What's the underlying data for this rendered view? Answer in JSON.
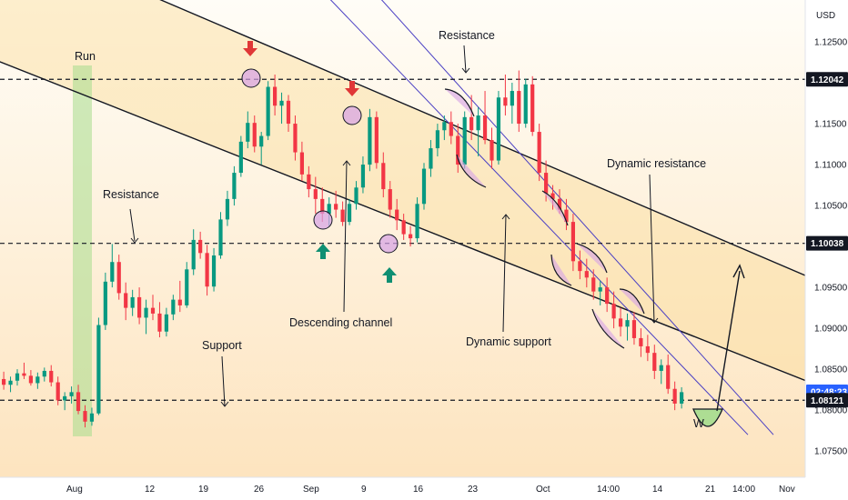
{
  "chart_data": {
    "type": "candlestick",
    "currency": "USD",
    "y_ticks": [
      "1.12500",
      "1.12000",
      "1.11500",
      "1.11000",
      "1.10500",
      "1.10000",
      "1.09500",
      "1.09000",
      "1.08500",
      "1.08000",
      "1.07500"
    ],
    "ylim": [
      1.0718,
      1.129
    ],
    "x_ticks": [
      "Aug",
      "12",
      "19",
      "26",
      "Sep",
      "9",
      "16",
      "23",
      "Oct",
      "14:00",
      "14",
      "21",
      "14:00",
      "Nov"
    ],
    "price_tags": [
      {
        "text": "1.12042",
        "value": 1.12042,
        "style": "level"
      },
      {
        "text": "1.10038",
        "value": 1.10038,
        "style": "level"
      },
      {
        "text": "02:48:23",
        "value": 1.08224,
        "style": "countdown"
      },
      {
        "text": "1.08121",
        "value": 1.08121,
        "style": "level"
      }
    ],
    "horizontal_levels": [
      1.12042,
      1.10038,
      1.08121
    ],
    "candles_ohlc": [
      [
        1.0838,
        1.0847,
        1.0825,
        1.0831
      ],
      [
        1.0831,
        1.0841,
        1.0822,
        1.0836
      ],
      [
        1.0836,
        1.085,
        1.083,
        1.0845
      ],
      [
        1.0845,
        1.0858,
        1.0838,
        1.0842
      ],
      [
        1.0842,
        1.0849,
        1.083,
        1.0833
      ],
      [
        1.0833,
        1.0846,
        1.0826,
        1.0841
      ],
      [
        1.0841,
        1.0852,
        1.0835,
        1.0848
      ],
      [
        1.0848,
        1.0855,
        1.0829,
        1.0834
      ],
      [
        1.0834,
        1.0841,
        1.0806,
        1.0812
      ],
      [
        1.0812,
        1.0822,
        1.08,
        1.0817
      ],
      [
        1.0817,
        1.0829,
        1.0808,
        1.0822
      ],
      [
        1.0822,
        1.0831,
        1.0795,
        1.0799
      ],
      [
        1.0799,
        1.0806,
        1.0779,
        1.0786
      ],
      [
        1.0786,
        1.0803,
        1.0781,
        1.0796
      ],
      [
        1.0796,
        1.0913,
        1.0794,
        1.0904
      ],
      [
        1.0904,
        1.0968,
        1.0898,
        1.0957
      ],
      [
        1.0957,
        1.1003,
        1.095,
        1.0981
      ],
      [
        1.0981,
        1.099,
        1.0935,
        1.0943
      ],
      [
        1.0943,
        1.0956,
        1.091,
        1.0925
      ],
      [
        1.0925,
        1.0947,
        1.0915,
        1.0938
      ],
      [
        1.0938,
        1.095,
        1.0905,
        1.0913
      ],
      [
        1.0913,
        1.0935,
        1.0893,
        1.0925
      ],
      [
        1.0925,
        1.0941,
        1.091,
        1.0918
      ],
      [
        1.0918,
        1.0932,
        1.0889,
        1.0896
      ],
      [
        1.0896,
        1.0925,
        1.089,
        1.0917
      ],
      [
        1.0917,
        1.0941,
        1.091,
        1.0935
      ],
      [
        1.0935,
        1.0958,
        1.092,
        1.0928
      ],
      [
        1.0928,
        1.0981,
        1.0925,
        1.0972
      ],
      [
        1.0972,
        1.1021,
        1.0965,
        1.1008
      ],
      [
        1.1008,
        1.1018,
        1.0985,
        1.0992
      ],
      [
        1.0992,
        1.1002,
        1.094,
        1.0951
      ],
      [
        1.0951,
        1.0998,
        1.0945,
        1.0989
      ],
      [
        1.0989,
        1.1042,
        1.0985,
        1.1033
      ],
      [
        1.1033,
        1.1068,
        1.1025,
        1.1058
      ],
      [
        1.1058,
        1.1098,
        1.105,
        1.109
      ],
      [
        1.109,
        1.1135,
        1.1085,
        1.1128
      ],
      [
        1.1128,
        1.1165,
        1.112,
        1.1151
      ],
      [
        1.1151,
        1.116,
        1.1115,
        1.1122
      ],
      [
        1.1122,
        1.114,
        1.11,
        1.1135
      ],
      [
        1.1135,
        1.1202,
        1.113,
        1.1195
      ],
      [
        1.1195,
        1.121,
        1.116,
        1.1172
      ],
      [
        1.1172,
        1.1188,
        1.115,
        1.1178
      ],
      [
        1.1178,
        1.1185,
        1.114,
        1.115
      ],
      [
        1.115,
        1.116,
        1.1105,
        1.1115
      ],
      [
        1.1115,
        1.1128,
        1.108,
        1.1088
      ],
      [
        1.1088,
        1.1098,
        1.106,
        1.107
      ],
      [
        1.107,
        1.1085,
        1.104,
        1.1058
      ],
      [
        1.1058,
        1.1072,
        1.103,
        1.104
      ],
      [
        1.104,
        1.106,
        1.1025,
        1.1052
      ],
      [
        1.1052,
        1.1068,
        1.1035,
        1.1045
      ],
      [
        1.1045,
        1.1055,
        1.1025,
        1.103
      ],
      [
        1.103,
        1.1058,
        1.1026,
        1.1052
      ],
      [
        1.1052,
        1.108,
        1.1045,
        1.1072
      ],
      [
        1.1072,
        1.111,
        1.1065,
        1.11
      ],
      [
        1.11,
        1.1168,
        1.1092,
        1.1158
      ],
      [
        1.1158,
        1.1165,
        1.1095,
        1.1102
      ],
      [
        1.1102,
        1.1115,
        1.106,
        1.107
      ],
      [
        1.107,
        1.108,
        1.1035,
        1.1045
      ],
      [
        1.1045,
        1.1058,
        1.102,
        1.1032
      ],
      [
        1.1032,
        1.104,
        1.1008,
        1.1015
      ],
      [
        1.1015,
        1.1025,
        1.1,
        1.101
      ],
      [
        1.101,
        1.106,
        1.1005,
        1.1052
      ],
      [
        1.1052,
        1.1102,
        1.1045,
        1.1095
      ],
      [
        1.1095,
        1.113,
        1.1085,
        1.112
      ],
      [
        1.112,
        1.115,
        1.111,
        1.1142
      ],
      [
        1.1142,
        1.116,
        1.113,
        1.1152
      ],
      [
        1.1152,
        1.1165,
        1.1125,
        1.1135
      ],
      [
        1.1135,
        1.115,
        1.109,
        1.11
      ],
      [
        1.11,
        1.1165,
        1.1095,
        1.1158
      ],
      [
        1.1158,
        1.1185,
        1.113,
        1.1142
      ],
      [
        1.1142,
        1.117,
        1.111,
        1.116
      ],
      [
        1.116,
        1.119,
        1.1125,
        1.113
      ],
      [
        1.113,
        1.1145,
        1.1095,
        1.1105
      ],
      [
        1.1105,
        1.119,
        1.11,
        1.1182
      ],
      [
        1.1182,
        1.121,
        1.116,
        1.1172
      ],
      [
        1.1172,
        1.12,
        1.115,
        1.119
      ],
      [
        1.119,
        1.1215,
        1.114,
        1.115
      ],
      [
        1.115,
        1.1205,
        1.1145,
        1.1198
      ],
      [
        1.1198,
        1.1208,
        1.1135,
        1.114
      ],
      [
        1.114,
        1.115,
        1.108,
        1.109
      ],
      [
        1.109,
        1.1105,
        1.1055,
        1.1065
      ],
      [
        1.1065,
        1.1075,
        1.1045,
        1.1058
      ],
      [
        1.1058,
        1.107,
        1.104,
        1.1045
      ],
      [
        1.1045,
        1.1058,
        1.102,
        1.103
      ],
      [
        1.103,
        1.104,
        1.097,
        1.0982
      ],
      [
        1.0982,
        1.0995,
        1.096,
        1.097
      ],
      [
        1.097,
        1.0985,
        1.095,
        1.0962
      ],
      [
        1.0962,
        1.0972,
        1.0935,
        1.0945
      ],
      [
        1.0945,
        1.0958,
        1.0928,
        1.095
      ],
      [
        1.095,
        1.0962,
        1.092,
        1.093
      ],
      [
        1.093,
        1.0945,
        1.09,
        1.0912
      ],
      [
        1.0912,
        1.0925,
        1.089,
        1.0902
      ],
      [
        1.0902,
        1.0918,
        1.0885,
        1.091
      ],
      [
        1.091,
        1.092,
        1.088,
        1.0888
      ],
      [
        1.0888,
        1.09,
        1.0865,
        1.0878
      ],
      [
        1.0878,
        1.0892,
        1.086,
        1.087
      ],
      [
        1.087,
        1.088,
        1.0838,
        1.0848
      ],
      [
        1.0848,
        1.0862,
        1.0832,
        1.0855
      ],
      [
        1.0855,
        1.0868,
        1.082,
        1.0826
      ],
      [
        1.0826,
        1.0835,
        1.08,
        1.0808
      ],
      [
        1.0808,
        1.0828,
        1.0802,
        1.0822
      ]
    ],
    "channels": [
      {
        "name": "Descending channel upper",
        "from": {
          "x": -10,
          "y": 1.139
        },
        "to": {
          "x": 922,
          "y": 1.0947
        }
      },
      {
        "name": "Descending channel lower",
        "from": {
          "x": -10,
          "y": 1.123
        },
        "to": {
          "x": 922,
          "y": 1.082
        }
      },
      {
        "name": "Dynamic line A",
        "from": {
          "x": 330,
          "y": 1.134
        },
        "to": {
          "x": 822,
          "y": 1.077
        }
      },
      {
        "name": "Dynamic line B",
        "from": {
          "x": 380,
          "y": 1.135
        },
        "to": {
          "x": 850,
          "y": 1.077
        }
      }
    ],
    "annotations": [
      "Run",
      "Resistance",
      "Support",
      "Descending channel",
      "Resistance",
      "Dynamic resistance",
      "Dynamic support"
    ],
    "pattern_label": "W",
    "grid": false,
    "legend": "none"
  }
}
